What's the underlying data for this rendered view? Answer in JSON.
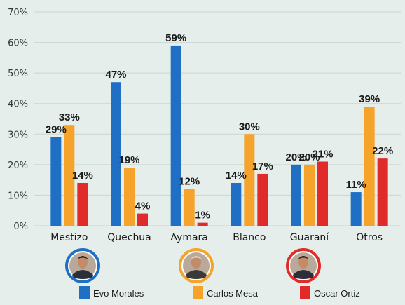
{
  "colors": {
    "evo": "#1f6fc4",
    "mesa": "#f5a32a",
    "ortiz": "#e12a2a",
    "background": "#e5eeea"
  },
  "chart_data": {
    "type": "bar",
    "categories": [
      "Mestizo",
      "Quechua",
      "Aymara",
      "Blanco",
      "Guaraní",
      "Otros"
    ],
    "series": [
      {
        "name": "Evo Morales",
        "values": [
          29,
          47,
          59,
          14,
          20,
          11
        ]
      },
      {
        "name": "Carlos Mesa",
        "values": [
          33,
          19,
          12,
          30,
          20,
          39
        ]
      },
      {
        "name": "Oscar Ortiz",
        "values": [
          14,
          4,
          1,
          17,
          21,
          22
        ]
      }
    ],
    "value_suffix": "%",
    "yticks": [
      "0%",
      "10%",
      "20%",
      "30%",
      "40%",
      "50%",
      "60%",
      "70%"
    ],
    "ylim": [
      0,
      70
    ],
    "grid": true,
    "legend_position": "bottom"
  }
}
